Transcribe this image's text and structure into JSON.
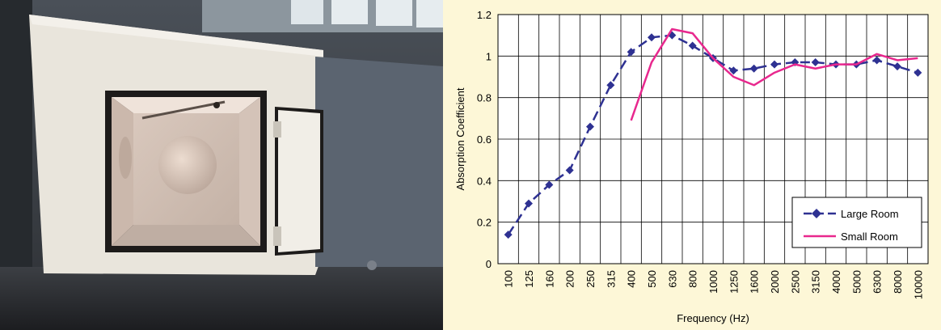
{
  "chart_data": {
    "type": "line",
    "xlabel": "Frequency (Hz)",
    "ylabel": "Absorption Coefficient",
    "ylim": [
      0,
      1.2
    ],
    "yticks": [
      "0",
      "0.2",
      "0.4",
      "0.6",
      "0.8",
      "1",
      "1.2"
    ],
    "categories": [
      "100",
      "125",
      "160",
      "200",
      "250",
      "315",
      "400",
      "500",
      "630",
      "800",
      "1000",
      "1250",
      "1600",
      "2000",
      "2500",
      "3150",
      "4000",
      "5000",
      "6300",
      "8000",
      "10000"
    ],
    "grid": true,
    "legend_position": "bottom-right",
    "series": [
      {
        "name": "Large Room",
        "color": "#2e3192",
        "style": "dashed-diamond",
        "values": [
          0.14,
          0.29,
          0.38,
          0.45,
          0.66,
          0.86,
          1.02,
          1.09,
          1.1,
          1.05,
          0.99,
          0.93,
          0.94,
          0.96,
          0.97,
          0.97,
          0.96,
          0.96,
          0.98,
          0.95,
          0.92
        ]
      },
      {
        "name": "Small Room",
        "color": "#e8288e",
        "style": "solid",
        "values": [
          null,
          null,
          null,
          null,
          null,
          null,
          0.69,
          0.97,
          1.13,
          1.11,
          0.99,
          0.9,
          0.86,
          0.92,
          0.96,
          0.94,
          0.96,
          0.96,
          1.01,
          0.98,
          0.99
        ]
      }
    ]
  }
}
